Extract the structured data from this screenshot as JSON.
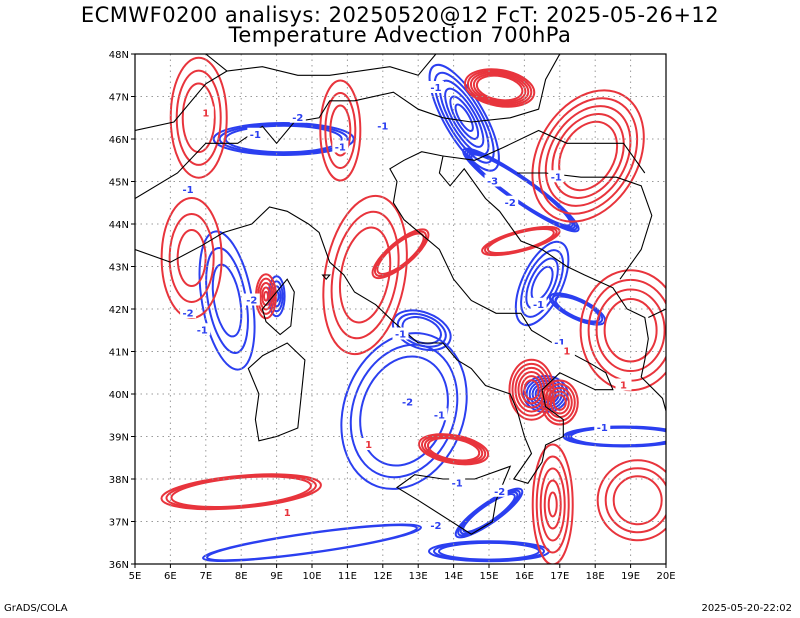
{
  "title_line1": "ECMWF0200 analisys: 20250520@12 FcT: 2025-05-26+12",
  "title_line2": "Temperature Advection 700hPa",
  "footer_left": "GrADS/COLA",
  "footer_right": "2025-05-20-22:02",
  "map": {
    "lon_labels": [
      "5E",
      "6E",
      "7E",
      "8E",
      "9E",
      "10E",
      "11E",
      "12E",
      "13E",
      "14E",
      "15E",
      "16E",
      "17E",
      "18E",
      "19E",
      "20E"
    ],
    "lat_labels": [
      "48N",
      "47N",
      "46N",
      "45N",
      "44N",
      "43N",
      "42N",
      "41N",
      "40N",
      "39N",
      "38N",
      "37N",
      "36N"
    ],
    "positive_color": "#e8343c",
    "negative_color": "#2b3ff0",
    "coastline_color": "#000000",
    "grid": "dotted"
  },
  "contour_labels": [
    {
      "text": "1",
      "sign": "pos",
      "lon": 7.0,
      "lat": 46.6
    },
    {
      "text": "-1",
      "sign": "neg",
      "lon": 8.4,
      "lat": 46.1
    },
    {
      "text": "-2",
      "sign": "neg",
      "lon": 9.6,
      "lat": 46.5
    },
    {
      "text": "-1",
      "sign": "neg",
      "lon": 10.8,
      "lat": 45.8
    },
    {
      "text": "-1",
      "sign": "neg",
      "lon": 12.0,
      "lat": 46.3
    },
    {
      "text": "-1",
      "sign": "neg",
      "lon": 6.5,
      "lat": 44.8
    },
    {
      "text": "-1",
      "sign": "neg",
      "lon": 13.5,
      "lat": 47.2
    },
    {
      "text": "-3",
      "sign": "neg",
      "lon": 15.1,
      "lat": 45.0
    },
    {
      "text": "-2",
      "sign": "neg",
      "lon": 15.6,
      "lat": 44.5
    },
    {
      "text": "-1",
      "sign": "neg",
      "lon": 16.9,
      "lat": 45.1
    },
    {
      "text": "-2",
      "sign": "neg",
      "lon": 8.3,
      "lat": 42.2
    },
    {
      "text": "-2",
      "sign": "neg",
      "lon": 6.5,
      "lat": 41.9
    },
    {
      "text": "-1",
      "sign": "neg",
      "lon": 6.9,
      "lat": 41.5
    },
    {
      "text": "-1",
      "sign": "neg",
      "lon": 12.5,
      "lat": 41.4
    },
    {
      "text": "-2",
      "sign": "neg",
      "lon": 12.7,
      "lat": 39.8
    },
    {
      "text": "-1",
      "sign": "neg",
      "lon": 13.6,
      "lat": 39.5
    },
    {
      "text": "-2",
      "sign": "neg",
      "lon": 13.5,
      "lat": 36.9
    },
    {
      "text": "-2",
      "sign": "neg",
      "lon": 15.3,
      "lat": 37.7
    },
    {
      "text": "-1",
      "sign": "neg",
      "lon": 14.1,
      "lat": 37.9
    },
    {
      "text": "-1",
      "sign": "neg",
      "lon": 16.4,
      "lat": 42.1
    },
    {
      "text": "-1",
      "sign": "neg",
      "lon": 17.0,
      "lat": 41.2
    },
    {
      "text": "-1",
      "sign": "neg",
      "lon": 18.2,
      "lat": 39.2
    },
    {
      "text": "1",
      "sign": "pos",
      "lon": 9.3,
      "lat": 37.2
    },
    {
      "text": "1",
      "sign": "pos",
      "lon": 11.6,
      "lat": 38.8
    },
    {
      "text": "1",
      "sign": "pos",
      "lon": 18.8,
      "lat": 40.2
    },
    {
      "text": "1",
      "sign": "pos",
      "lon": 17.2,
      "lat": 41.0
    }
  ]
}
